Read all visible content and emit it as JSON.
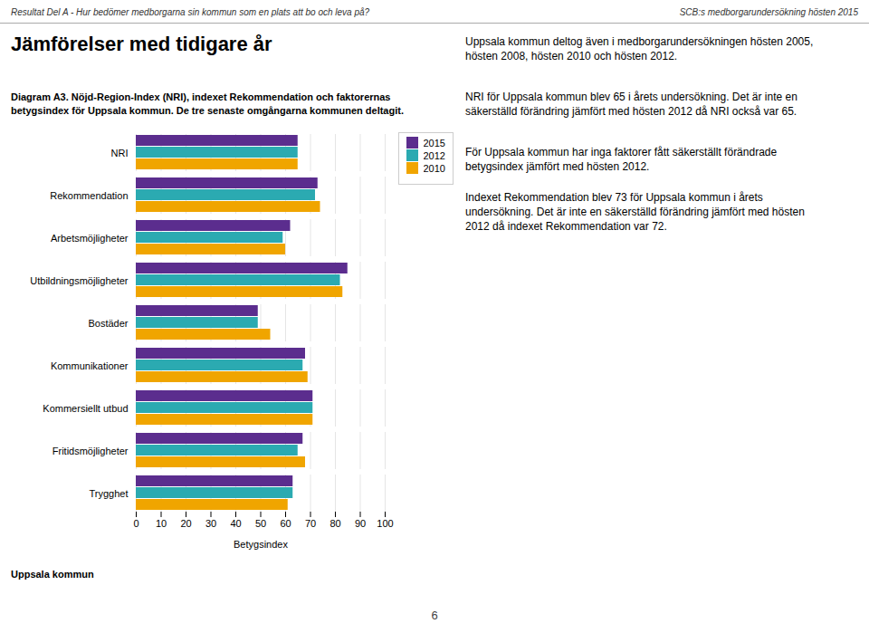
{
  "chart_data": {
    "type": "bar",
    "orientation": "horizontal",
    "title": "Jämförelser med tidigare år",
    "subtitle": "Diagram A3. Nöjd-Region-Index (NRI), indexet Rekommendation och faktorernas\nbetygsindex för Uppsala kommun. De tre senaste omgångarna kommunen deltagit.",
    "annotations": [
      "Resultat Del A - Hur bedömer medborgarna sin kommun som en plats att bo och leva på?",
      "SCB:s medborgarundersökning hösten 2015",
      "Uppsala kommun deltog även i medborgarundersökningen hösten 2005,\nhösten 2008, hösten 2010 och hösten 2012.",
      "NRI för Uppsala kommun blev 65 i årets undersökning. Det är inte en\nsäkerställd förändring jämfört med hösten 2012 då NRI också var 65.",
      "För Uppsala kommun har inga faktorer fått säkerställt förändrade\nbetygsindex jämfört med hösten 2012.",
      "Indexet Rekommendation blev 73 för Uppsala kommun i årets\nundersökning. Det är inte en säkerställd förändring jämfört med hösten\n2012 då indexet Rekommendation var 72.",
      "Uppsala kommun",
      "6"
    ],
    "categories": [
      "NRI",
      "Rekommendation",
      "Arbetsmöjligheter",
      "Utbildningsmöjligheter",
      "Bostäder",
      "Kommunikationer",
      "Kommersiellt utbud",
      "Fritidsmöjligheter",
      "Trygghet"
    ],
    "series": [
      {
        "name": "2015",
        "color": "#5b2d8e",
        "values": [
          65,
          73,
          62,
          85,
          49,
          68,
          71,
          67,
          63
        ]
      },
      {
        "name": "2012",
        "color": "#2baab1",
        "values": [
          65,
          72,
          59,
          82,
          49,
          67,
          71,
          65,
          63
        ]
      },
      {
        "name": "2010",
        "color": "#f0a500",
        "values": [
          65,
          74,
          60,
          83,
          54,
          69,
          71,
          68,
          61
        ]
      }
    ],
    "xlabel": "Betygsindex",
    "xlim": [
      0,
      100
    ],
    "xticks": [
      0,
      10,
      20,
      30,
      40,
      50,
      60,
      70,
      80,
      90,
      100
    ],
    "grid": true,
    "legend": "right"
  }
}
